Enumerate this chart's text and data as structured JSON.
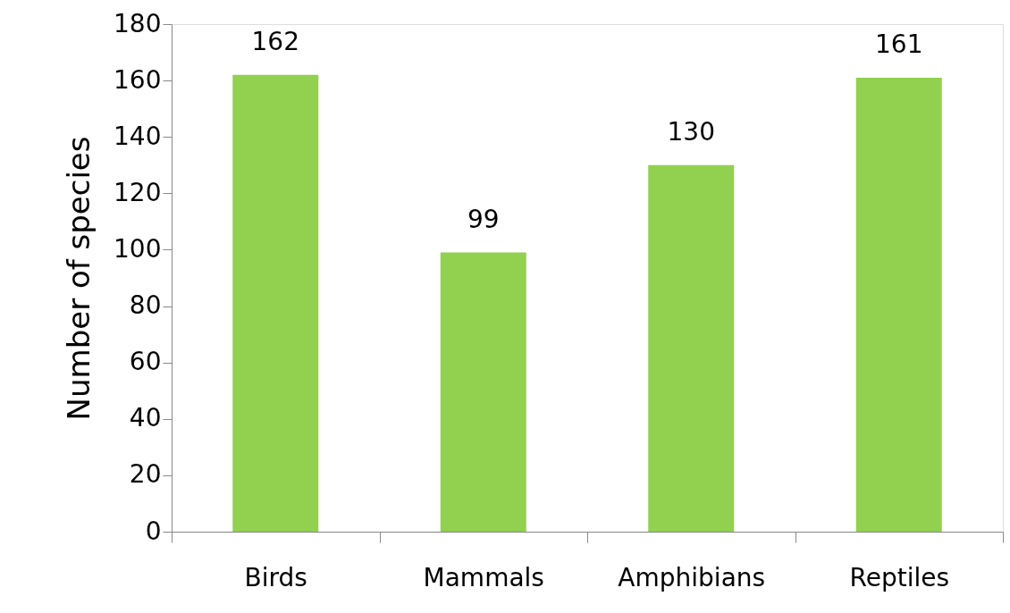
{
  "chart_data": {
    "type": "bar",
    "ylabel": "Number of species",
    "categories": [
      "Birds",
      "Mammals",
      "Amphibians",
      "Reptiles"
    ],
    "values": [
      162,
      99,
      130,
      161
    ],
    "color": "#92d050",
    "ylim": [
      0,
      180
    ],
    "yticks": [
      0,
      20,
      40,
      60,
      80,
      100,
      120,
      140,
      160,
      180
    ],
    "grid": false,
    "data_labels": true
  }
}
